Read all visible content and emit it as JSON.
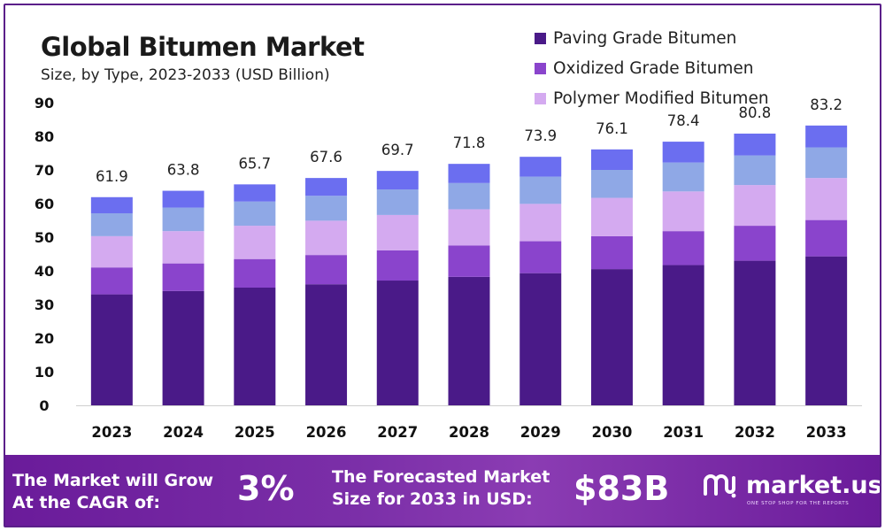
{
  "title": "Global Bitumen Market",
  "subtitle": "Size, by Type, 2023-2033 (USD Billion)",
  "legend": [
    {
      "label": "Paving Grade Bitumen",
      "color": "#4a1a88"
    },
    {
      "label": "Oxidized Grade Bitumen",
      "color": "#8a44cc"
    },
    {
      "label": "Polymer Modified Bitumen",
      "color": "#d4aaf0"
    }
  ],
  "chart_data": {
    "type": "bar",
    "stacked": true,
    "categories": [
      "2023",
      "2024",
      "2025",
      "2026",
      "2027",
      "2028",
      "2029",
      "2030",
      "2031",
      "2032",
      "2033"
    ],
    "series": [
      {
        "name": "Paving Grade Bitumen",
        "color": "#4a1a88",
        "values": [
          33.0,
          34.0,
          35.0,
          36.0,
          37.1,
          38.2,
          39.3,
          40.5,
          41.7,
          43.0,
          44.3
        ]
      },
      {
        "name": "Oxidized Grade Bitumen",
        "color": "#8a44cc",
        "values": [
          8.0,
          8.2,
          8.5,
          8.7,
          9.0,
          9.3,
          9.5,
          9.8,
          10.1,
          10.4,
          10.8
        ]
      },
      {
        "name": "Polymer Modified Bitumen",
        "color": "#d4aaf0",
        "values": [
          9.3,
          9.6,
          9.9,
          10.2,
          10.5,
          10.8,
          11.1,
          11.4,
          11.8,
          12.1,
          12.5
        ]
      },
      {
        "color": "#8fa8e6",
        "values": [
          6.8,
          7.0,
          7.2,
          7.4,
          7.6,
          7.8,
          8.1,
          8.3,
          8.6,
          8.8,
          9.1
        ]
      },
      {
        "color": "#6b6ef0",
        "values": [
          4.8,
          5.0,
          5.1,
          5.3,
          5.5,
          5.7,
          5.9,
          6.1,
          6.2,
          6.5,
          6.5
        ]
      }
    ],
    "totals": [
      61.9,
      63.8,
      65.7,
      67.6,
      69.7,
      71.8,
      73.9,
      76.1,
      78.4,
      80.8,
      83.2
    ],
    "yticks": [
      0,
      10,
      20,
      30,
      40,
      50,
      60,
      70,
      80,
      90
    ],
    "ylim": [
      0,
      90
    ],
    "grid": false,
    "legend_position": "top-right"
  },
  "footer": {
    "cagr_text_line1": "The Market will Grow",
    "cagr_text_line2": "At the CAGR of:",
    "cagr_value": "3%",
    "forecast_text_line1": "The Forecasted Market",
    "forecast_text_line2": "Size for 2033 in USD:",
    "forecast_value": "$83B",
    "brand_name": "market.us",
    "brand_tagline": "ONE STOP SHOP FOR THE REPORTS",
    "logo_icon": "market-us-logo-icon"
  }
}
